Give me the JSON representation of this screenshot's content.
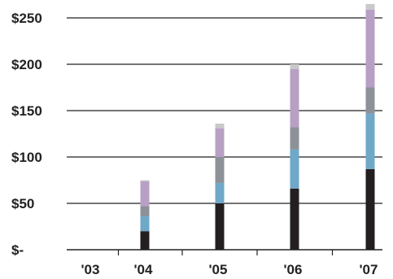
{
  "chart_data": {
    "type": "bar",
    "stacked": true,
    "title": "",
    "xlabel": "",
    "ylabel": "",
    "ylim": [
      0,
      250
    ],
    "grid": true,
    "legend": "none",
    "categories": [
      "'03",
      "'04",
      "'05",
      "'06",
      "'07"
    ],
    "y_tick_labels": [
      {
        "value": 0,
        "label": "$-"
      },
      {
        "value": 50,
        "label": "$50"
      },
      {
        "value": 100,
        "label": "$100"
      },
      {
        "value": 150,
        "label": "$150"
      },
      {
        "value": 200,
        "label": "$200"
      },
      {
        "value": 250,
        "label": "$250"
      }
    ],
    "series": [
      {
        "color": "#231f20",
        "values": [
          0,
          20,
          50,
          66,
          87
        ]
      },
      {
        "color": "#6fa8c8",
        "values": [
          0,
          16,
          22,
          42,
          60
        ]
      },
      {
        "color": "#8c9297",
        "values": [
          0,
          11,
          28,
          24,
          28
        ]
      },
      {
        "color": "#b8a0c4",
        "values": [
          0,
          27,
          31,
          63,
          84
        ]
      },
      {
        "color": "#c9c9c9",
        "values": [
          0,
          1,
          5,
          5,
          6
        ]
      }
    ]
  }
}
